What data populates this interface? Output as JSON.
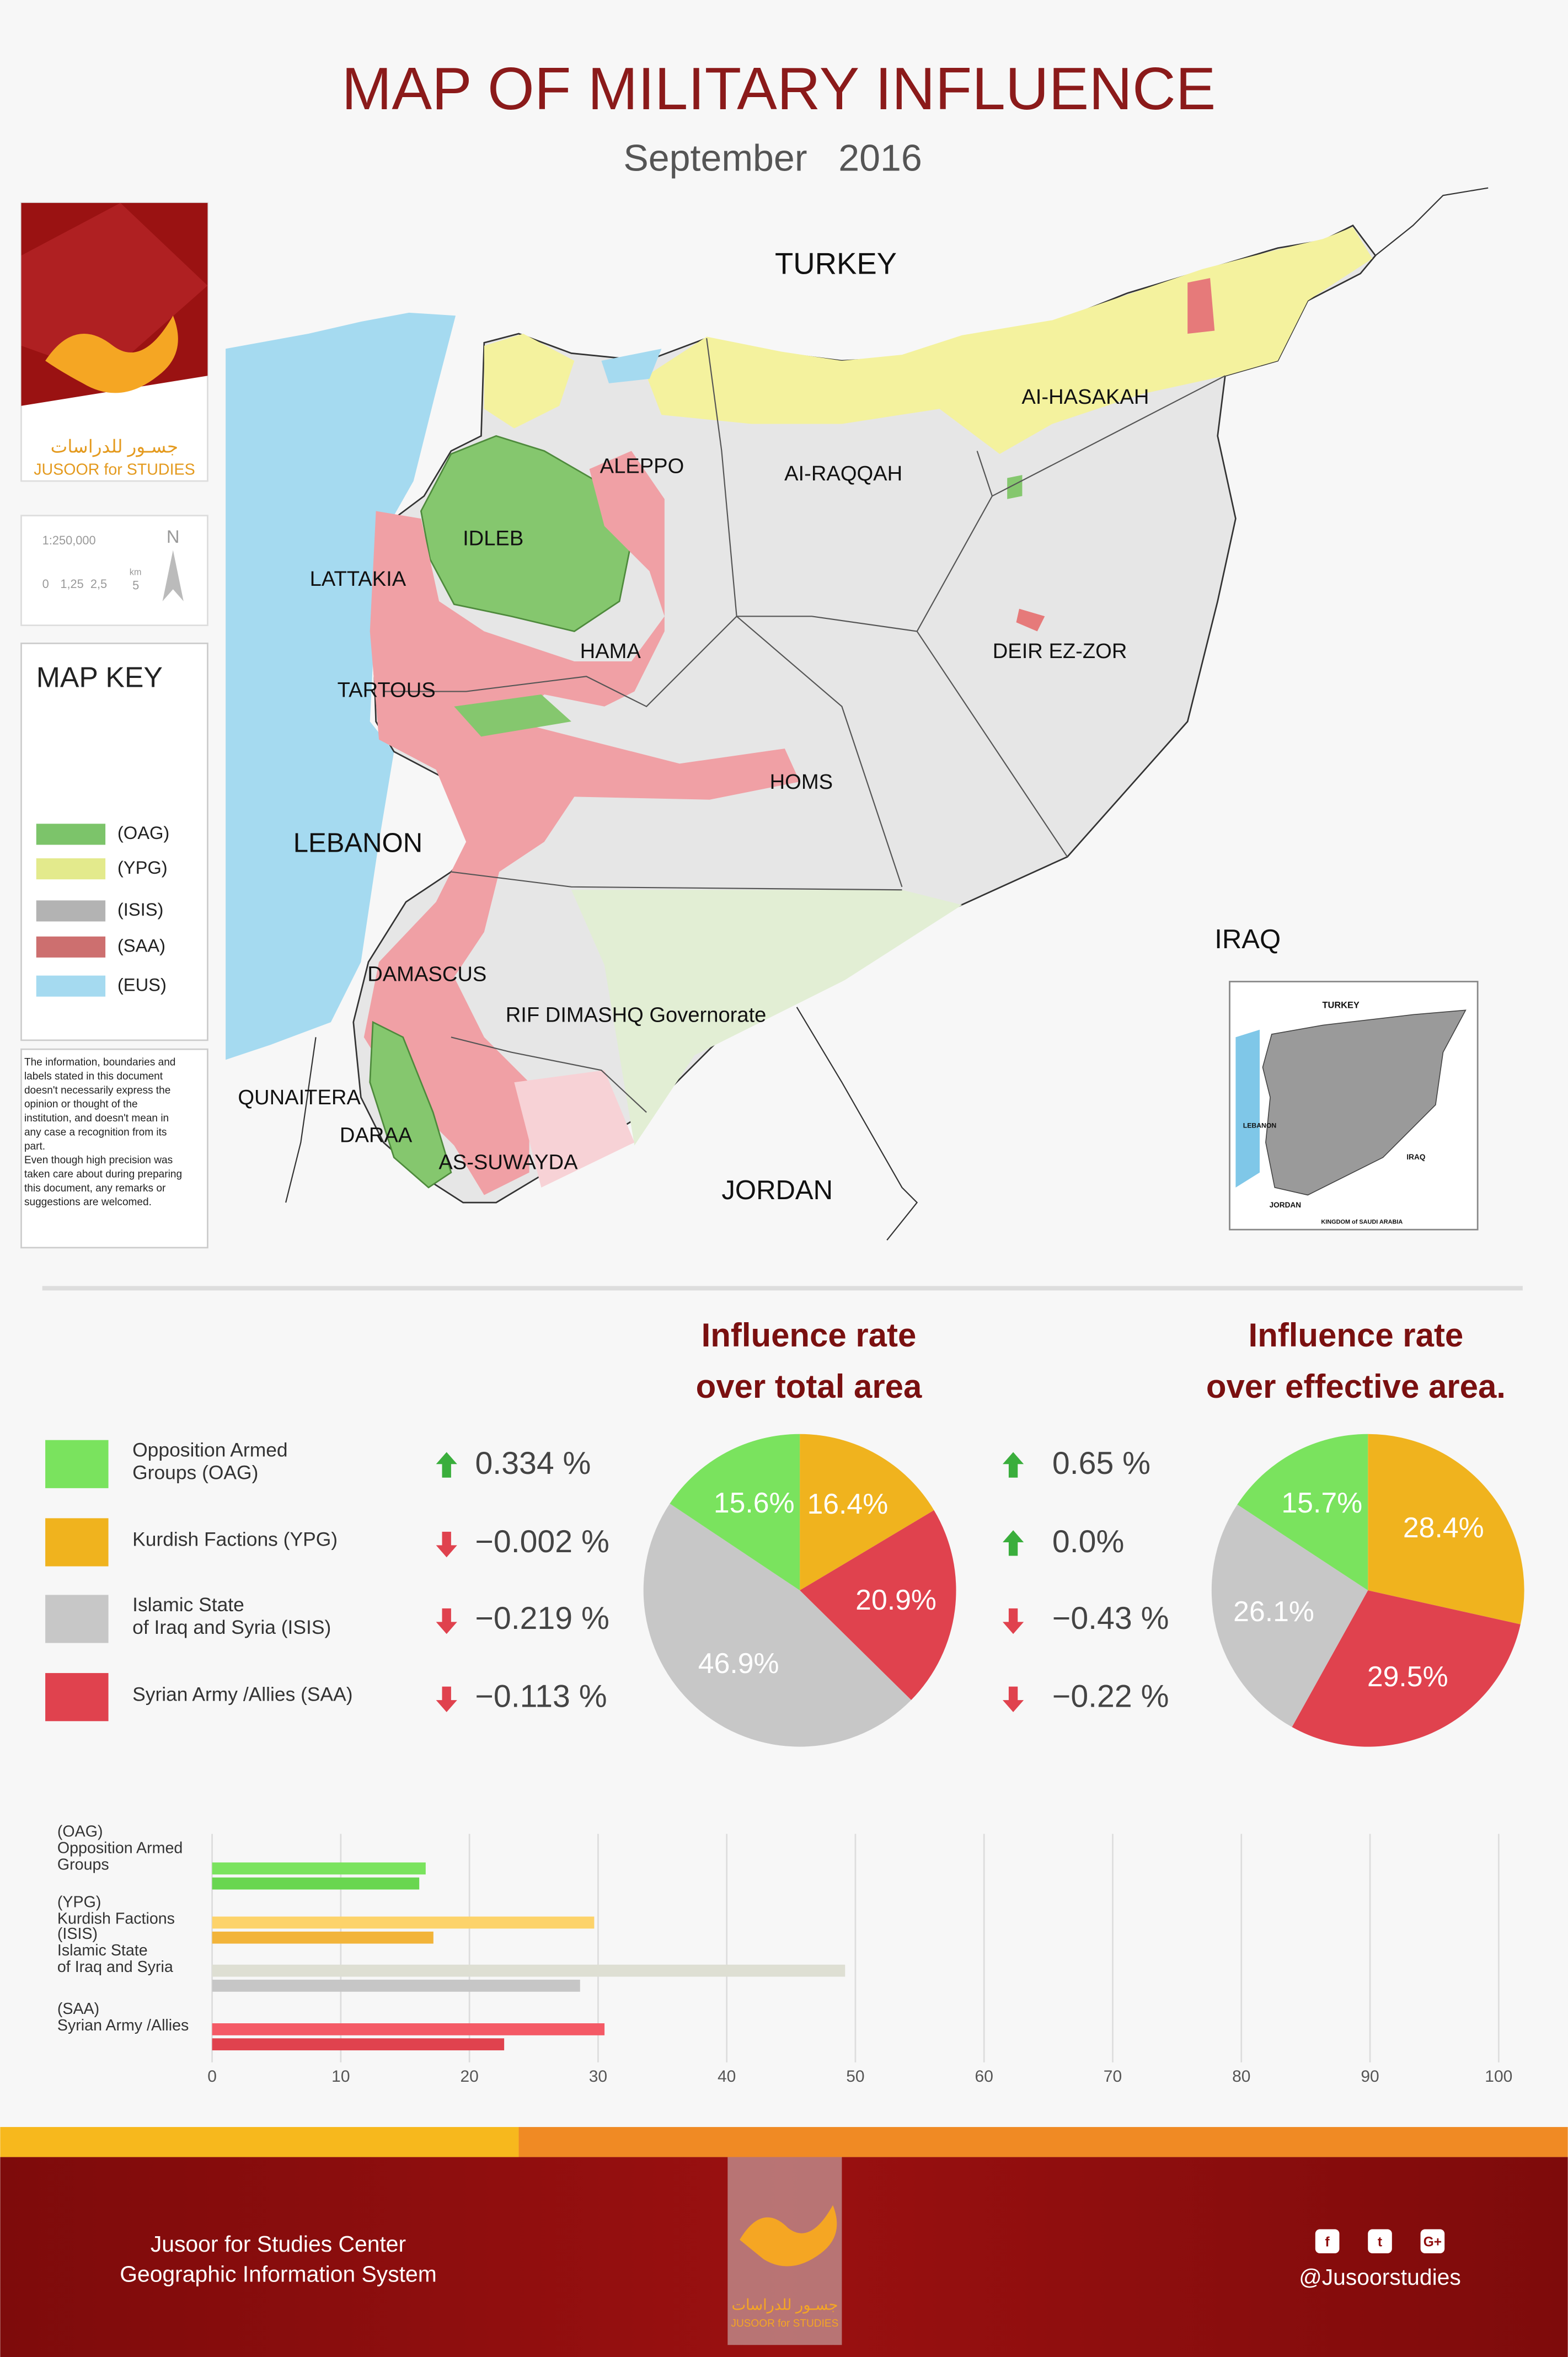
{
  "header": {
    "title": "MAP OF MILITARY INFLUENCE",
    "subtitle": "September   2016"
  },
  "logo": {
    "arabic": "جسـور للدراسات",
    "english": "JUSOOR for STUDIES"
  },
  "scale": {
    "ratio": "1:250,000",
    "ticks": [
      "0",
      "1,25",
      "2,5",
      "5"
    ],
    "unit": "km",
    "north": "N"
  },
  "map_key": {
    "title": "MAP KEY",
    "items": [
      {
        "label": "(OAG)",
        "color": "#7cc46a"
      },
      {
        "label": "(YPG)",
        "color": "#e3ea8c"
      },
      {
        "label": "(ISIS)",
        "color": "#b3b3b3"
      },
      {
        "label": "(SAA)",
        "color": "#cd6f6f"
      },
      {
        "label": "(EUS)",
        "color": "#a5daf0"
      }
    ]
  },
  "disclaimer": [
    "The information, boundaries and",
    "labels stated in this document",
    "doesn't necessarily express the",
    "opinion or thought of the",
    "institution, and doesn't mean in",
    "any case a recognition from its",
    "part.",
    "Even though high precision was",
    "taken care about during preparing",
    "this document, any remarks or",
    "suggestions are welcomed."
  ],
  "map": {
    "labels": [
      "TURKEY",
      "AI-HASAKAH",
      "AI-RAQQAH",
      "ALEPPO",
      "IDLEB",
      "LATTAKIA",
      "HAMA",
      "TARTOUS",
      "DEIR EZ-ZOR",
      "HOMS",
      "LEBANON",
      "IRAQ",
      "DAMASCUS",
      "RIF DIMASHQ Governorate",
      "QUNAITERA",
      "DARAA",
      "AS-SUWAYDA",
      "JORDAN"
    ],
    "inset_labels": [
      "TURKEY",
      "LEBANON",
      "IRAQ",
      "JORDAN",
      "KINGDOM of SAUDI ARABIA"
    ]
  },
  "legend": {
    "items": [
      {
        "name": [
          "Opposition Armed",
          " Groups  (OAG)"
        ],
        "color": "#7ae35e"
      },
      {
        "name": [
          "Kurdish Factions (YPG)"
        ],
        "color": "#f0b31e"
      },
      {
        "name": [
          "Islamic State",
          "of Iraq and Syria (ISIS)"
        ],
        "color": "#c7c7c7"
      },
      {
        "name": [
          "Syrian Army /Allies (SAA)"
        ],
        "color": "#e0424e"
      }
    ]
  },
  "changes": {
    "total": [
      0.334,
      -0.002,
      -0.219,
      -0.113
    ],
    "total_labels": [
      "0.334 %",
      "−0.002 %",
      "−0.219 %",
      "−0.113 %"
    ],
    "effective": [
      0.65,
      0.0,
      -0.43,
      -0.22
    ],
    "effective_labels": [
      "0.65 %",
      "0.0%",
      "−0.43 %",
      "−0.22 %"
    ]
  },
  "chart_data": [
    {
      "type": "pie",
      "title": [
        "Influence rate",
        "over total area"
      ],
      "values": [
        16.4,
        20.9,
        46.9,
        15.6
      ],
      "value_labels": [
        "16.4%",
        "20.9%",
        "46.9%",
        "15.6%"
      ],
      "colors": [
        "#f0b31e",
        "#e0424e",
        "#c7c7c7",
        "#7ae35e"
      ]
    },
    {
      "type": "pie",
      "title": [
        "Influence rate",
        "over effective area."
      ],
      "values": [
        28.4,
        29.5,
        26.1,
        15.7
      ],
      "value_labels": [
        "28.4%",
        "29.5%",
        "26.1%",
        "15.7%"
      ],
      "colors": [
        "#f0b31e",
        "#e0424e",
        "#c7c7c7",
        "#7ae35e"
      ]
    },
    {
      "type": "hbar",
      "categories": [
        [
          "(OAG)",
          "Opposition Armed",
          "Groups"
        ],
        [
          "(YPG)",
          "Kurdish Factions"
        ],
        [
          "(ISIS)",
          "Islamic State",
          "of Iraq and Syria"
        ],
        [
          "(SAA)",
          "Syrian Army /Allies"
        ]
      ],
      "series": [
        {
          "colors": [
            "#7ae35e",
            "#fdd36a",
            "#dedfd3",
            "#f45a66"
          ],
          "values": [
            16.6,
            29.7,
            49.2,
            30.5
          ]
        },
        {
          "colors": [
            "#69d650",
            "#f2b43a",
            "#c6c6c6",
            "#e0424e"
          ],
          "values": [
            16.1,
            17.2,
            28.6,
            22.7
          ]
        }
      ],
      "xlim": [
        0,
        100
      ],
      "xticks": [
        0,
        10,
        20,
        30,
        40,
        50,
        60,
        70,
        80,
        90,
        100
      ],
      "grid": true
    }
  ],
  "footer": {
    "left": [
      "Jusoor for Studies Center",
      "Geographic Information System"
    ],
    "handle": "@Jusoorstudies",
    "icons": [
      "f",
      "t",
      "G+"
    ],
    "logo_arabic": "جسـور للدراسات",
    "logo_english": "JUSOOR for STUDIES"
  }
}
